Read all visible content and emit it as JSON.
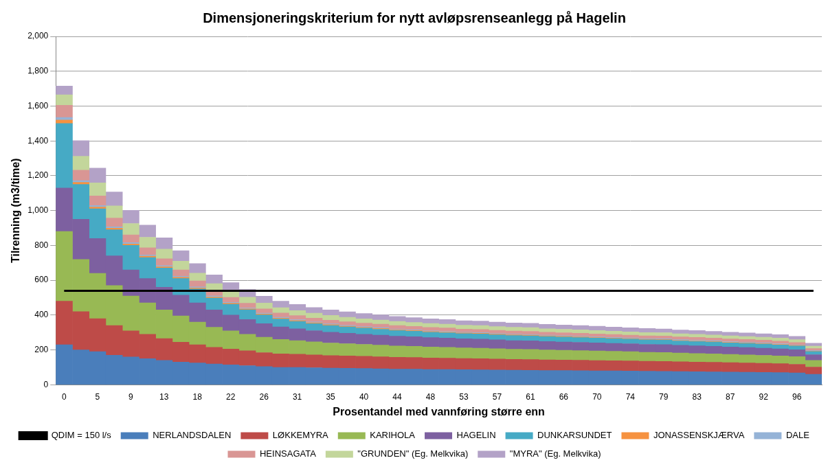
{
  "chart_data": {
    "type": "bar",
    "title": "Dimensjoneringskriterium for nytt avløpsrenseanlegg på Hagelin",
    "x_label": "Prosentandel med vannføring større enn",
    "y_label": "Tilrenning (m3/time)",
    "stacked": true,
    "grid": true,
    "legend": "bottom",
    "ylim": [
      0,
      2000
    ],
    "yticks": [
      0,
      200,
      400,
      600,
      800,
      1000,
      1200,
      1400,
      1600,
      1800,
      2000
    ],
    "categories": [
      "0",
      null,
      "5",
      null,
      "9",
      null,
      "13",
      null,
      "18",
      null,
      "22",
      null,
      "26",
      null,
      "31",
      null,
      "35",
      null,
      "40",
      null,
      "44",
      null,
      "48",
      null,
      "53",
      null,
      "57",
      null,
      "61",
      null,
      "66",
      null,
      "70",
      null,
      "74",
      null,
      "79",
      null,
      "83",
      null,
      "87",
      null,
      "92",
      null,
      "96",
      null
    ],
    "series": [
      {
        "name": "NERLANDSDALEN",
        "color": "#4a7ebb",
        "values": [
          230,
          200,
          190,
          170,
          160,
          150,
          140,
          130,
          125,
          120,
          115,
          110,
          105,
          100,
          100,
          98,
          96,
          95,
          94,
          92,
          90,
          90,
          88,
          88,
          87,
          86,
          85,
          84,
          83,
          82,
          82,
          81,
          80,
          80,
          79,
          78,
          77,
          76,
          75,
          74,
          73,
          72,
          71,
          70,
          68,
          60
        ]
      },
      {
        "name": "LØKKEMYRA",
        "color": "#be4b48",
        "values": [
          250,
          220,
          190,
          170,
          150,
          140,
          125,
          115,
          105,
          95,
          90,
          85,
          80,
          78,
          76,
          74,
          72,
          71,
          70,
          69,
          68,
          67,
          66,
          65,
          64,
          64,
          63,
          62,
          62,
          61,
          60,
          60,
          59,
          58,
          58,
          57,
          57,
          56,
          55,
          55,
          54,
          53,
          52,
          51,
          50,
          42
        ]
      },
      {
        "name": "KARIHOLA",
        "color": "#98b954",
        "values": [
          400,
          300,
          260,
          230,
          200,
          180,
          165,
          150,
          130,
          115,
          105,
          95,
          88,
          82,
          78,
          75,
          72,
          70,
          68,
          67,
          65,
          64,
          63,
          62,
          61,
          60,
          59,
          58,
          58,
          57,
          56,
          55,
          55,
          54,
          53,
          52,
          52,
          51,
          50,
          49,
          48,
          47,
          46,
          45,
          44,
          38
        ]
      },
      {
        "name": "HAGELIN",
        "color": "#7d60a0",
        "values": [
          250,
          230,
          200,
          170,
          150,
          140,
          130,
          120,
          110,
          100,
          90,
          85,
          78,
          72,
          68,
          64,
          62,
          60,
          58,
          57,
          56,
          55,
          54,
          53,
          52,
          52,
          51,
          50,
          50,
          49,
          48,
          48,
          47,
          46,
          46,
          45,
          45,
          44,
          44,
          43,
          42,
          42,
          41,
          40,
          39,
          33
        ]
      },
      {
        "name": "DUNKARSUNDET",
        "color": "#46aac5",
        "values": [
          370,
          200,
          170,
          150,
          140,
          120,
          110,
          95,
          80,
          68,
          62,
          56,
          50,
          46,
          42,
          40,
          38,
          36,
          35,
          34,
          33,
          32,
          31,
          31,
          30,
          30,
          29,
          29,
          28,
          28,
          28,
          27,
          27,
          27,
          26,
          26,
          26,
          25,
          25,
          25,
          24,
          24,
          24,
          23,
          22,
          18
        ]
      },
      {
        "name": "JONASSENSKJÆRVA",
        "color": "#f69240",
        "values": [
          20,
          12,
          10,
          9,
          8,
          8,
          7,
          7,
          6,
          6,
          6,
          5,
          5,
          5,
          5,
          5,
          5,
          4,
          4,
          4,
          4,
          4,
          4,
          4,
          4,
          4,
          4,
          4,
          4,
          4,
          4,
          4,
          3,
          3,
          3,
          3,
          3,
          3,
          3,
          3,
          3,
          3,
          3,
          3,
          3,
          2
        ]
      },
      {
        "name": "DALE",
        "color": "#95b3d7",
        "values": [
          15,
          10,
          9,
          8,
          8,
          7,
          7,
          6,
          6,
          6,
          5,
          5,
          5,
          5,
          5,
          5,
          5,
          5,
          5,
          5,
          4,
          4,
          4,
          4,
          4,
          4,
          4,
          4,
          4,
          4,
          4,
          4,
          4,
          4,
          4,
          4,
          4,
          4,
          4,
          4,
          4,
          4,
          4,
          4,
          3,
          3
        ]
      },
      {
        "name": "HEINSAGATA",
        "color": "#d99694",
        "values": [
          70,
          60,
          55,
          50,
          45,
          42,
          40,
          37,
          34,
          31,
          29,
          27,
          25,
          24,
          23,
          22,
          21,
          21,
          20,
          20,
          20,
          19,
          19,
          19,
          18,
          18,
          18,
          18,
          18,
          17,
          17,
          17,
          17,
          17,
          16,
          16,
          16,
          16,
          16,
          15,
          15,
          15,
          15,
          15,
          14,
          12
        ]
      },
      {
        "name": "\"GRUNDEN\" (Eg. Melkvika)",
        "color": "#c3d69b",
        "values": [
          60,
          80,
          75,
          70,
          65,
          60,
          55,
          50,
          45,
          40,
          38,
          35,
          33,
          31,
          29,
          28,
          27,
          26,
          25,
          24,
          24,
          23,
          23,
          22,
          22,
          22,
          21,
          21,
          21,
          20,
          20,
          20,
          20,
          19,
          19,
          19,
          19,
          18,
          18,
          18,
          18,
          17,
          17,
          17,
          16,
          14
        ]
      },
      {
        "name": "\"MYRA\" (Eg. Melkvika)",
        "color": "#b3a2c7",
        "values": [
          50,
          90,
          85,
          80,
          75,
          70,
          65,
          60,
          55,
          50,
          47,
          44,
          40,
          37,
          35,
          33,
          32,
          31,
          30,
          29,
          28,
          28,
          27,
          27,
          26,
          26,
          26,
          25,
          25,
          25,
          24,
          24,
          24,
          23,
          23,
          23,
          22,
          22,
          22,
          21,
          21,
          21,
          20,
          20,
          19,
          17
        ]
      },
      {
        "name": "QDIM = 150 l/s",
        "color": "#000000",
        "type": "line",
        "values": [
          540,
          540,
          540,
          540,
          540,
          540,
          540,
          540,
          540,
          540,
          540,
          540,
          540,
          540,
          540,
          540,
          540,
          540,
          540,
          540,
          540,
          540,
          540,
          540,
          540,
          540,
          540,
          540,
          540,
          540,
          540,
          540,
          540,
          540,
          540,
          540,
          540,
          540,
          540,
          540,
          540,
          540,
          540,
          540,
          540,
          540
        ]
      }
    ]
  }
}
